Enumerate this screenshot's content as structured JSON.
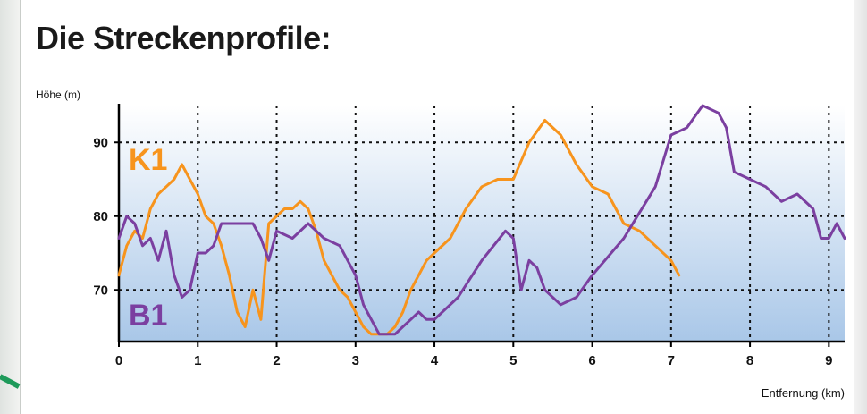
{
  "page": {
    "title": "Die Streckenprofile:"
  },
  "chart_data": {
    "type": "line",
    "title": "Die Streckenprofile:",
    "ylabel": "Höhe (m)",
    "xlabel": "Entfernung (km)",
    "xlim": [
      0,
      9.2
    ],
    "ylim": [
      63,
      95
    ],
    "xticks": [
      0,
      1,
      2,
      3,
      4,
      5,
      6,
      7,
      8,
      9
    ],
    "yticks": [
      70,
      80,
      90
    ],
    "grid": true,
    "colors": {
      "K1": "#f7941d",
      "B1": "#7b3fa0",
      "background_top": "#ffffff",
      "background_bottom": "#a9c7e8"
    },
    "series": [
      {
        "name": "K1",
        "label_position": "upper-left",
        "x": [
          0,
          0.1,
          0.2,
          0.3,
          0.4,
          0.5,
          0.6,
          0.7,
          0.8,
          0.9,
          1.0,
          1.1,
          1.2,
          1.3,
          1.4,
          1.5,
          1.6,
          1.7,
          1.8,
          1.9,
          2.0,
          2.1,
          2.2,
          2.3,
          2.4,
          2.5,
          2.6,
          2.7,
          2.8,
          2.9,
          3.0,
          3.1,
          3.2,
          3.3,
          3.4,
          3.5,
          3.6,
          3.7,
          3.8,
          3.9,
          4.0,
          4.2,
          4.4,
          4.6,
          4.8,
          5.0,
          5.2,
          5.4,
          5.6,
          5.8,
          6.0,
          6.2,
          6.4,
          6.6,
          6.8,
          7.0,
          7.1
        ],
        "y": [
          72,
          76,
          78,
          77,
          81,
          83,
          84,
          85,
          87,
          85,
          83,
          80,
          79,
          76,
          72,
          67,
          65,
          70,
          66,
          79,
          80,
          81,
          81,
          82,
          81,
          78,
          74,
          72,
          70,
          69,
          67,
          65,
          64,
          64,
          64,
          65,
          67,
          70,
          72,
          74,
          75,
          77,
          81,
          84,
          85,
          85,
          90,
          93,
          91,
          87,
          84,
          83,
          79,
          78,
          76,
          74,
          72
        ]
      },
      {
        "name": "B1",
        "label_position": "lower-left",
        "x": [
          0,
          0.1,
          0.2,
          0.3,
          0.4,
          0.5,
          0.6,
          0.7,
          0.8,
          0.9,
          1.0,
          1.1,
          1.2,
          1.3,
          1.4,
          1.5,
          1.6,
          1.7,
          1.8,
          1.9,
          2.0,
          2.2,
          2.4,
          2.6,
          2.8,
          3.0,
          3.1,
          3.2,
          3.3,
          3.4,
          3.5,
          3.6,
          3.7,
          3.8,
          3.9,
          4.0,
          4.3,
          4.6,
          4.9,
          5.0,
          5.1,
          5.2,
          5.3,
          5.4,
          5.6,
          5.8,
          6.0,
          6.4,
          6.8,
          7.0,
          7.2,
          7.4,
          7.6,
          7.7,
          7.8,
          8.0,
          8.2,
          8.4,
          8.6,
          8.8,
          8.9,
          9.0,
          9.1,
          9.2
        ],
        "y": [
          77,
          80,
          79,
          76,
          77,
          74,
          78,
          72,
          69,
          70,
          75,
          75,
          76,
          79,
          79,
          79,
          79,
          79,
          77,
          74,
          78,
          77,
          79,
          77,
          76,
          72,
          68,
          66,
          64,
          64,
          64,
          65,
          66,
          67,
          66,
          66,
          69,
          74,
          78,
          77,
          70,
          74,
          73,
          70,
          68,
          69,
          72,
          77,
          84,
          91,
          92,
          95,
          94,
          92,
          86,
          85,
          84,
          82,
          83,
          81,
          77,
          77,
          79,
          77
        ]
      }
    ]
  }
}
